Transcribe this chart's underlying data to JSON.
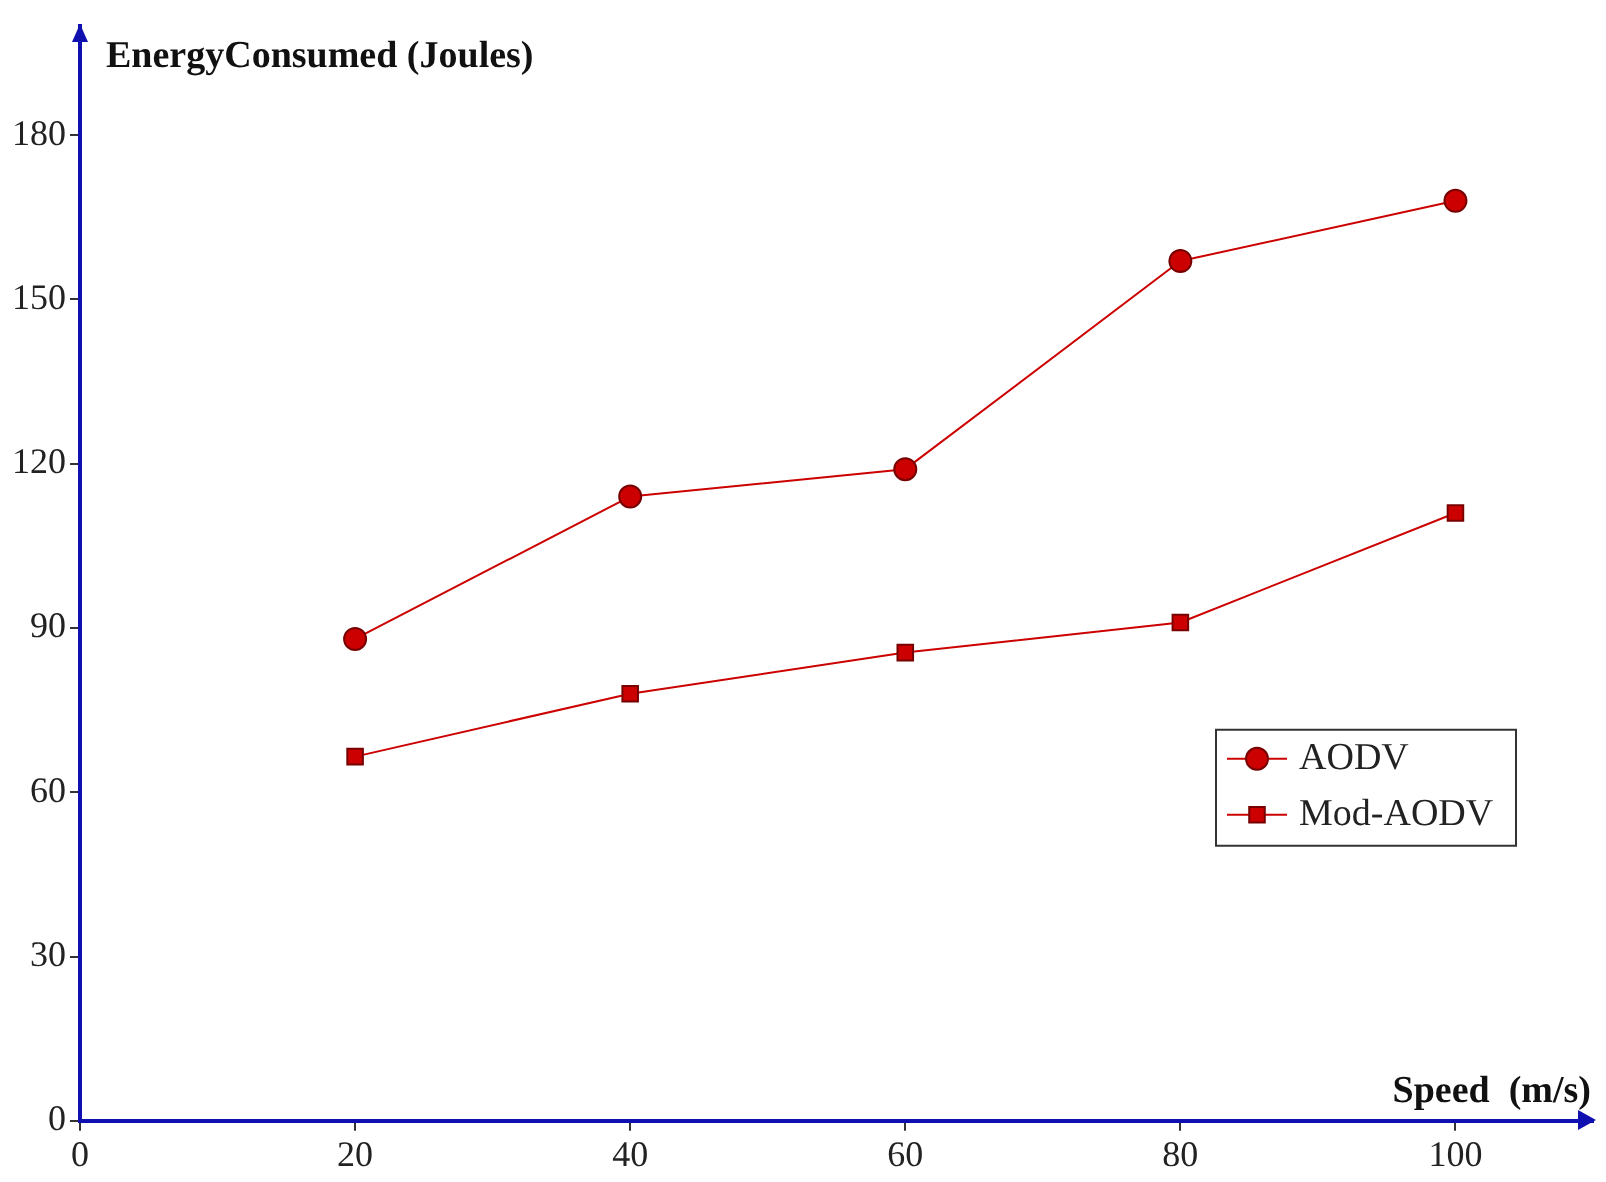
{
  "chart_data": {
    "type": "line",
    "xlabel": "Speed  (m/s)",
    "ylabel": "EnergyConsumed (Joules)",
    "x": [
      20,
      40,
      60,
      80,
      100
    ],
    "series": [
      {
        "name": "AODV",
        "color": "#cc0000",
        "marker": "circle",
        "values": [
          88,
          114,
          119,
          157,
          168
        ]
      },
      {
        "name": "Mod-AODV",
        "color": "#cc0000",
        "marker": "square",
        "values": [
          66.5,
          78,
          85.5,
          91,
          111
        ]
      }
    ],
    "xlim": [
      0,
      110
    ],
    "xticks": [
      0,
      20,
      40,
      60,
      80,
      100
    ],
    "ylim": [
      0,
      200
    ],
    "yticks": [
      0,
      30,
      60,
      90,
      120,
      150,
      180
    ],
    "grid": false,
    "legend": "bottom right",
    "line_style": "solid"
  }
}
